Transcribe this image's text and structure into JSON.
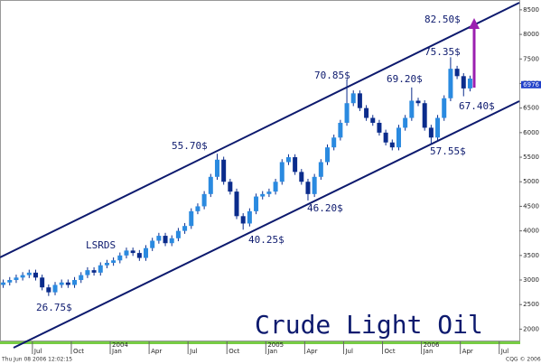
{
  "chart_data": {
    "type": "candlestick",
    "title": "Crude Light Oil",
    "open": [
      2900,
      2950,
      3000,
      3050,
      3100,
      3150,
      3050,
      2850,
      2750,
      2900,
      2950,
      2900,
      3000,
      3100,
      3200,
      3150,
      3300,
      3350,
      3400,
      3500,
      3600,
      3550,
      3450,
      3650,
      3800,
      3900,
      3750,
      3850,
      4000,
      4100,
      4400,
      4500,
      4750,
      5100,
      5450,
      5000,
      4800,
      4300,
      4150,
      4400,
      4700,
      4750,
      4800,
      5000,
      5400,
      5500,
      5200,
      5000,
      4750,
      5100,
      5400,
      5700,
      5900,
      6200,
      6600,
      6800,
      6500,
      6300,
      6200,
      6000,
      5800,
      5700,
      6100,
      6300,
      6650,
      6600,
      6100,
      5900,
      6300,
      6700,
      7300,
      7150,
      6900
    ],
    "high": [
      3010,
      3060,
      3110,
      3160,
      3210,
      3210,
      3110,
      2910,
      2960,
      3010,
      3010,
      3060,
      3160,
      3260,
      3260,
      3360,
      3410,
      3460,
      3560,
      3660,
      3660,
      3610,
      3710,
      3860,
      3960,
      3960,
      3910,
      4060,
      4160,
      4460,
      4560,
      4810,
      5160,
      5570,
      5510,
      5060,
      4860,
      4360,
      4460,
      4760,
      4810,
      4860,
      5060,
      5460,
      5560,
      5560,
      5260,
      5060,
      5160,
      5460,
      5760,
      5960,
      6260,
      7085,
      6860,
      6860,
      6560,
      6360,
      6260,
      6060,
      5860,
      6160,
      6360,
      6920,
      6710,
      6660,
      6160,
      6360,
      6760,
      7535,
      7360,
      7210,
      7160
    ],
    "low": [
      2840,
      2890,
      2940,
      2990,
      3040,
      2990,
      2790,
      2675,
      2690,
      2840,
      2840,
      2840,
      2940,
      3040,
      3090,
      3090,
      3240,
      3290,
      3340,
      3440,
      3490,
      3390,
      3390,
      3590,
      3740,
      3690,
      3690,
      3790,
      3940,
      4040,
      4340,
      4440,
      4690,
      5040,
      4940,
      4740,
      4240,
      4025,
      4090,
      4340,
      4640,
      4690,
      4740,
      4940,
      5340,
      5140,
      4940,
      4620,
      4690,
      5040,
      5340,
      5640,
      5840,
      6140,
      6540,
      6440,
      6240,
      6140,
      5940,
      5740,
      5640,
      5640,
      6040,
      6240,
      6540,
      6040,
      5755,
      5840,
      6240,
      6640,
      7090,
      6740,
      6840
    ],
    "close": [
      2950,
      3000,
      3050,
      3100,
      3150,
      3050,
      2850,
      2750,
      2900,
      2950,
      2900,
      3000,
      3100,
      3200,
      3150,
      3300,
      3350,
      3400,
      3500,
      3600,
      3550,
      3450,
      3650,
      3800,
      3900,
      3750,
      3850,
      4000,
      4100,
      4400,
      4500,
      4750,
      5100,
      5450,
      5000,
      4800,
      4300,
      4150,
      4400,
      4700,
      4750,
      4800,
      5000,
      5400,
      5500,
      5200,
      5000,
      4750,
      5100,
      5400,
      5700,
      5900,
      6200,
      6600,
      6800,
      6500,
      6300,
      6200,
      6000,
      5800,
      5700,
      6100,
      6300,
      6650,
      6600,
      6100,
      5900,
      6300,
      6700,
      7300,
      7150,
      6900,
      7100
    ],
    "up_color": "#2a8ae0",
    "down_color": "#0b2c8c",
    "ylim": [
      1750,
      8700
    ],
    "yticks": [
      2000,
      2500,
      3000,
      3500,
      4000,
      4500,
      5000,
      5500,
      6000,
      6500,
      7000,
      7500,
      8000,
      8500
    ],
    "xlim": [
      -0.5,
      79.6
    ],
    "xticks": [
      {
        "value": 4.5,
        "label": "Jul"
      },
      {
        "value": 10.5,
        "label": "Oct"
      },
      {
        "value": 16.5,
        "label": "Jan"
      },
      {
        "value": 22.5,
        "label": "Apr"
      },
      {
        "value": 28.5,
        "label": "Jul"
      },
      {
        "value": 34.5,
        "label": "Oct"
      },
      {
        "value": 40.5,
        "label": "Jan"
      },
      {
        "value": 46.5,
        "label": "Apr"
      },
      {
        "value": 52.5,
        "label": "Jul"
      },
      {
        "value": 58.5,
        "label": "Oct"
      },
      {
        "value": 64.5,
        "label": "Jan"
      },
      {
        "value": 70.5,
        "label": "Apr"
      },
      {
        "value": 76.5,
        "label": "Jul"
      }
    ],
    "years": [
      {
        "value": 16.5,
        "label": "2004"
      },
      {
        "value": 40.5,
        "label": "2005"
      },
      {
        "value": 64.5,
        "label": "2006"
      }
    ],
    "last_price": 6976,
    "annotations": [
      {
        "label": "82.50$",
        "value": 8250
      },
      {
        "label": "75.35$",
        "value": 7535
      },
      {
        "label": "70.85$",
        "value": 7085
      },
      {
        "label": "69.20$",
        "value": 6920
      },
      {
        "label": "67.40$",
        "value": 6740
      },
      {
        "label": "57.55$",
        "value": 5755
      },
      {
        "label": "55.70$",
        "value": 5570
      },
      {
        "label": "46.20$",
        "value": 4620
      },
      {
        "label": "40.25$",
        "value": 4025
      },
      {
        "label": "26.75$",
        "value": 2675
      }
    ],
    "pattern_label": "LSRDS",
    "timestamp": "Thu Jun 08 2006 12:02:15",
    "copyright": "CQG © 2006"
  }
}
